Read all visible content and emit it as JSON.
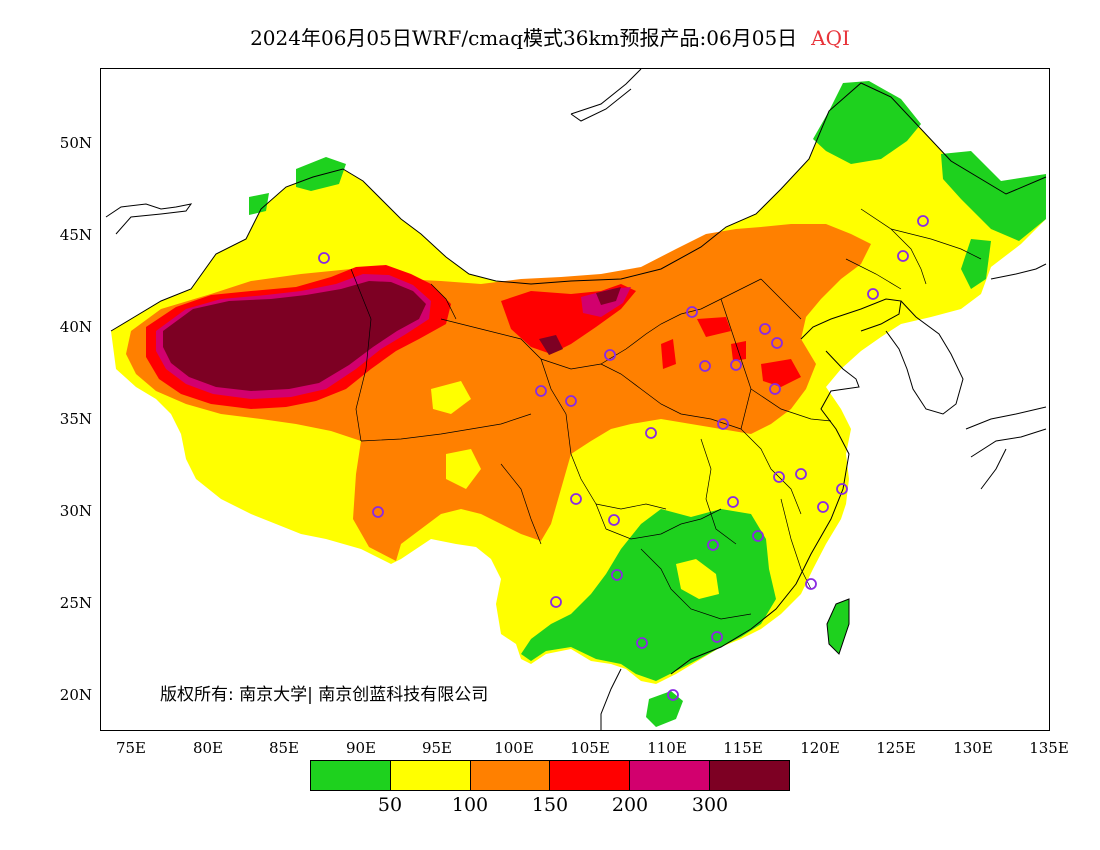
{
  "title": {
    "main": "2024年06月05日WRF/cmaq模式36km预报产品:06月05日",
    "variable": "AQI"
  },
  "axes": {
    "lat_labels": [
      "50N",
      "45N",
      "40N",
      "35N",
      "30N",
      "25N",
      "20N"
    ],
    "lon_labels": [
      "75E",
      "80E",
      "85E",
      "90E",
      "95E",
      "100E",
      "105E",
      "110E",
      "115E",
      "120E",
      "125E",
      "130E",
      "135E"
    ],
    "lon_range": [
      73,
      135
    ],
    "lat_range": [
      18,
      54
    ]
  },
  "copyright": "版权所有: 南京大学| 南京创蓝科技有限公司",
  "legend": {
    "colors": [
      "#1ed11e",
      "#ffff00",
      "#ff8000",
      "#ff0000",
      "#d2006e",
      "#7d0023"
    ],
    "ticks": [
      "50",
      "100",
      "150",
      "200",
      "300"
    ]
  },
  "colors": {
    "good": "#1ed11e",
    "moderate": "#ffff00",
    "usg": "#ff8000",
    "unhealthy": "#ff0000",
    "very_unhealthy": "#d2006e",
    "hazardous": "#7d0023",
    "station_marker": "#8a2be2"
  }
}
